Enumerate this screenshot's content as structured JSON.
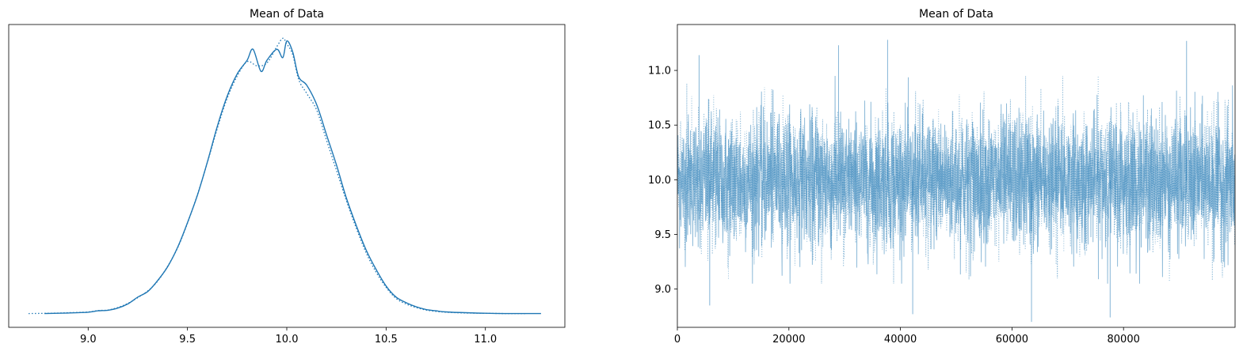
{
  "chart_data": [
    {
      "type": "line",
      "title": "Mean of Data",
      "xlabel": "",
      "ylabel": "",
      "xlim": [
        8.6,
        11.4
      ],
      "ylim": [
        -0.05,
        1.05
      ],
      "y_ticks_shown": false,
      "grid": false,
      "x_ticks": [
        9.0,
        9.5,
        10.0,
        10.5,
        11.0
      ],
      "x_tick_labels": [
        "9.0",
        "9.5",
        "10.0",
        "10.5",
        "11.0"
      ],
      "line_color": "#1f77b4",
      "series": [
        {
          "style": "solid",
          "x": [
            8.78,
            8.9,
            9.0,
            9.05,
            9.1,
            9.15,
            9.2,
            9.25,
            9.3,
            9.35,
            9.4,
            9.45,
            9.5,
            9.55,
            9.6,
            9.65,
            9.7,
            9.75,
            9.8,
            9.83,
            9.87,
            9.9,
            9.95,
            9.98,
            10.0,
            10.03,
            10.06,
            10.1,
            10.15,
            10.2,
            10.25,
            10.3,
            10.35,
            10.4,
            10.45,
            10.5,
            10.55,
            10.6,
            10.65,
            10.7,
            10.75,
            10.8,
            10.9,
            11.0,
            11.1,
            11.28
          ],
          "y": [
            0.0,
            0.002,
            0.005,
            0.01,
            0.012,
            0.02,
            0.035,
            0.06,
            0.08,
            0.12,
            0.17,
            0.24,
            0.33,
            0.43,
            0.55,
            0.68,
            0.79,
            0.87,
            0.92,
            0.96,
            0.88,
            0.92,
            0.96,
            0.93,
            0.99,
            0.95,
            0.86,
            0.83,
            0.76,
            0.65,
            0.54,
            0.42,
            0.32,
            0.23,
            0.16,
            0.1,
            0.06,
            0.04,
            0.025,
            0.015,
            0.01,
            0.006,
            0.003,
            0.001,
            0.0,
            0.0
          ]
        },
        {
          "style": "dotted",
          "x": [
            8.7,
            8.8,
            8.9,
            9.0,
            9.05,
            9.1,
            9.15,
            9.2,
            9.25,
            9.3,
            9.35,
            9.4,
            9.45,
            9.5,
            9.55,
            9.6,
            9.65,
            9.7,
            9.75,
            9.8,
            9.85,
            9.9,
            9.95,
            9.98,
            10.0,
            10.03,
            10.06,
            10.1,
            10.15,
            10.2,
            10.25,
            10.3,
            10.35,
            10.4,
            10.45,
            10.5,
            10.55,
            10.6,
            10.65,
            10.7,
            10.75,
            10.8,
            10.9,
            11.0,
            11.1,
            11.2
          ],
          "y": [
            0.0,
            0.001,
            0.003,
            0.006,
            0.011,
            0.013,
            0.022,
            0.037,
            0.058,
            0.082,
            0.118,
            0.172,
            0.238,
            0.328,
            0.432,
            0.548,
            0.672,
            0.782,
            0.862,
            0.915,
            0.9,
            0.91,
            0.97,
            1.0,
            0.98,
            0.94,
            0.85,
            0.8,
            0.74,
            0.63,
            0.52,
            0.41,
            0.31,
            0.22,
            0.15,
            0.095,
            0.055,
            0.035,
            0.022,
            0.013,
            0.008,
            0.005,
            0.002,
            0.001,
            0.0,
            0.0
          ]
        }
      ]
    },
    {
      "type": "line",
      "title": "Mean of Data",
      "xlabel": "",
      "ylabel": "",
      "xlim": [
        0,
        99999
      ],
      "ylim": [
        8.65,
        11.42
      ],
      "grid": false,
      "x_ticks": [
        0,
        20000,
        40000,
        60000,
        80000
      ],
      "x_tick_labels": [
        "0",
        "20000",
        "40000",
        "60000",
        "80000"
      ],
      "y_ticks": [
        9.0,
        9.5,
        10.0,
        10.5,
        11.0
      ],
      "y_tick_labels": [
        "9.0",
        "9.5",
        "10.0",
        "10.5",
        "11.0"
      ],
      "line_color": "#1f77b4",
      "n_draws": 100000,
      "trace_mean": 9.99,
      "trace_sd": 0.3,
      "trace_extremes": [
        {
          "x": 37700,
          "y": 11.28
        },
        {
          "x": 91300,
          "y": 11.27
        },
        {
          "x": 28900,
          "y": 11.23
        },
        {
          "x": 3900,
          "y": 11.14
        },
        {
          "x": 63500,
          "y": 8.7
        },
        {
          "x": 42200,
          "y": 8.77
        },
        {
          "x": 77600,
          "y": 8.74
        },
        {
          "x": 5800,
          "y": 8.85
        }
      ]
    }
  ]
}
